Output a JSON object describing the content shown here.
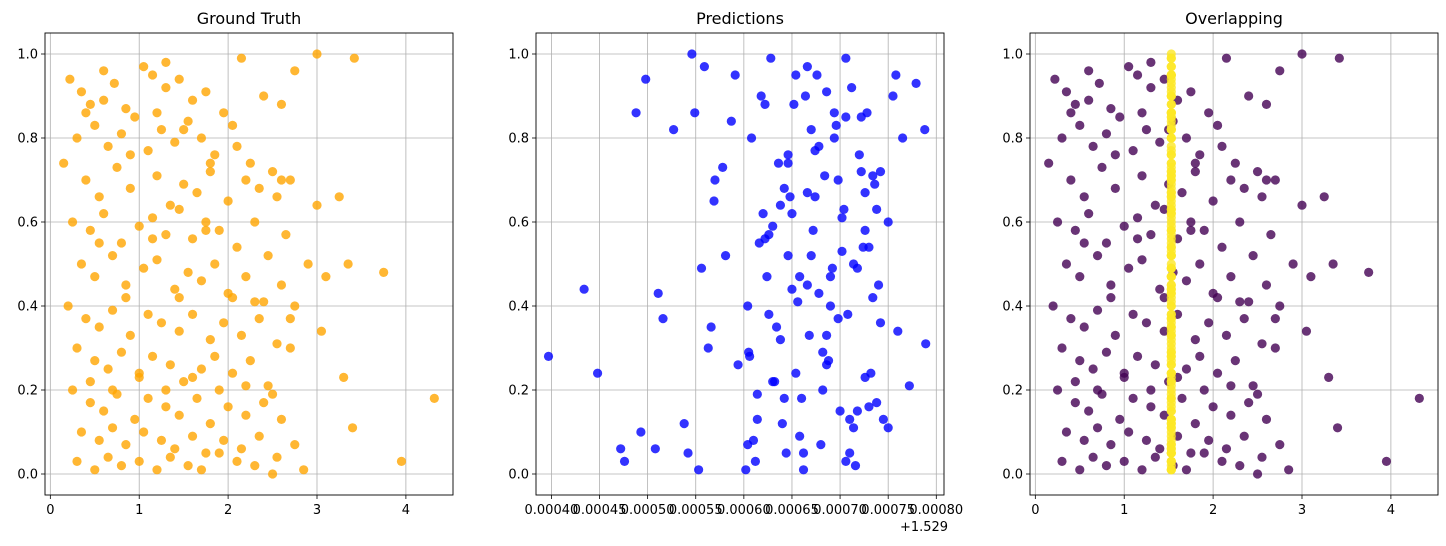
{
  "chart_data": [
    {
      "type": "scatter",
      "title": "Ground Truth",
      "xlabel": "",
      "ylabel": "",
      "xlim": [
        -0.06,
        4.53
      ],
      "ylim": [
        -0.05,
        1.05
      ],
      "xticks": [
        0,
        1,
        2,
        3,
        4
      ],
      "xtick_labels": [
        "0",
        "1",
        "2",
        "3",
        "4"
      ],
      "yticks": [
        0.0,
        0.2,
        0.4,
        0.6,
        0.8,
        1.0
      ],
      "ytick_labels": [
        "0.0",
        "0.2",
        "0.4",
        "0.6",
        "0.8",
        "1.0"
      ],
      "grid": true,
      "series": [
        {
          "color": "#FFA500",
          "alpha": 0.8,
          "x": [
            0.22,
            0.35,
            0.45,
            0.6,
            0.72,
            0.85,
            1.05,
            1.15,
            1.3,
            1.45,
            1.6,
            1.75,
            1.95,
            2.15,
            2.4,
            2.6,
            0.3,
            0.5,
            0.65,
            0.8,
            0.95,
            1.1,
            1.25,
            1.4,
            1.55,
            1.7,
            1.85,
            2.05,
            2.25,
            2.5,
            2.75,
            0.15,
            0.4,
            0.55,
            0.75,
            0.9,
            1.2,
            1.35,
            1.5,
            1.65,
            1.8,
            2.0,
            2.2,
            2.35,
            2.55,
            2.7,
            3.0,
            0.25,
            0.45,
            0.6,
            0.8,
            1.0,
            1.15,
            1.3,
            1.45,
            1.6,
            1.75,
            1.9,
            2.1,
            2.3,
            2.45,
            2.65,
            2.9,
            3.25,
            0.35,
            0.5,
            0.7,
            0.85,
            1.05,
            1.2,
            1.4,
            1.55,
            1.7,
            1.85,
            2.0,
            2.2,
            2.4,
            2.6,
            2.75,
            3.1,
            0.2,
            0.4,
            0.55,
            0.7,
            0.9,
            1.1,
            1.25,
            1.45,
            1.6,
            1.8,
            1.95,
            2.15,
            2.35,
            2.55,
            2.7,
            3.35,
            3.75,
            0.3,
            0.5,
            0.65,
            0.8,
            1.0,
            1.15,
            1.35,
            1.5,
            1.7,
            1.85,
            2.05,
            2.25,
            2.45,
            2.7,
            3.05,
            0.25,
            0.45,
            0.6,
            0.75,
            0.95,
            1.1,
            1.3,
            1.45,
            1.65,
            1.8,
            2.0,
            2.2,
            2.4,
            2.6,
            3.3,
            0.35,
            0.55,
            0.7,
            0.85,
            1.05,
            1.25,
            1.4,
            1.6,
            1.75,
            1.95,
            2.15,
            2.35,
            2.55,
            2.75,
            3.4,
            0.3,
            0.5,
            0.65,
            0.8,
            1.0,
            1.2,
            1.35,
            1.55,
            1.7,
            1.9,
            2.1,
            2.3,
            2.5,
            2.85,
            3.95,
            4.32,
            1.3,
            2.6,
            3.0,
            3.42,
            0.4,
            0.6,
            0.9,
            1.2,
            1.5,
            1.8,
            2.1,
            0.55,
            0.85,
            1.15,
            1.45,
            1.75,
            2.05,
            2.3,
            0.45,
            0.7,
            1.0,
            1.3,
            1.6,
            1.9,
            2.2,
            2.5
          ],
          "y": [
            0.94,
            0.91,
            0.88,
            0.96,
            0.93,
            0.87,
            0.97,
            0.95,
            0.92,
            0.94,
            0.89,
            0.91,
            0.86,
            0.99,
            0.9,
            0.88,
            0.8,
            0.83,
            0.78,
            0.81,
            0.85,
            0.77,
            0.82,
            0.79,
            0.84,
            0.8,
            0.76,
            0.83,
            0.74,
            0.72,
            0.96,
            0.74,
            0.7,
            0.66,
            0.73,
            0.68,
            0.71,
            0.64,
            0.69,
            0.67,
            0.72,
            0.65,
            0.7,
            0.68,
            0.66,
            0.7,
            0.64,
            0.6,
            0.58,
            0.62,
            0.55,
            0.59,
            0.61,
            0.57,
            0.63,
            0.56,
            0.6,
            0.58,
            0.54,
            0.6,
            0.52,
            0.57,
            0.5,
            0.66,
            0.5,
            0.47,
            0.52,
            0.45,
            0.49,
            0.51,
            0.44,
            0.48,
            0.46,
            0.5,
            0.43,
            0.47,
            0.41,
            0.45,
            0.4,
            0.47,
            0.4,
            0.37,
            0.35,
            0.39,
            0.33,
            0.38,
            0.36,
            0.34,
            0.38,
            0.32,
            0.36,
            0.33,
            0.37,
            0.31,
            0.37,
            0.5,
            0.48,
            0.3,
            0.27,
            0.25,
            0.29,
            0.23,
            0.28,
            0.26,
            0.22,
            0.25,
            0.28,
            0.24,
            0.27,
            0.21,
            0.3,
            0.34,
            0.2,
            0.17,
            0.15,
            0.19,
            0.13,
            0.18,
            0.16,
            0.14,
            0.18,
            0.12,
            0.16,
            0.14,
            0.17,
            0.13,
            0.23,
            0.1,
            0.08,
            0.11,
            0.07,
            0.1,
            0.08,
            0.06,
            0.09,
            0.05,
            0.08,
            0.06,
            0.09,
            0.04,
            0.07,
            0.11,
            0.03,
            0.01,
            0.04,
            0.02,
            0.03,
            0.01,
            0.04,
            0.02,
            0.01,
            0.05,
            0.03,
            0.02,
            0.0,
            0.01,
            0.03,
            0.18,
            0.98,
            0.7,
            1.0,
            0.99,
            0.86,
            0.89,
            0.76,
            0.86,
            0.82,
            0.74,
            0.78,
            0.55,
            0.42,
            0.56,
            0.42,
            0.58,
            0.42,
            0.41,
            0.22,
            0.2,
            0.24,
            0.2,
            0.23,
            0.2,
            0.21,
            0.19
          ]
        }
      ]
    },
    {
      "type": "scatter",
      "title": "Predictions",
      "xlabel": "",
      "ylabel": "",
      "offset_label": "+1.529",
      "x_offset": 1.529,
      "xlim": [
        0.000384,
        0.000808
      ],
      "ylim": [
        -0.05,
        1.05
      ],
      "xticks": [
        0.0004,
        0.00045,
        0.0005,
        0.00055,
        0.0006,
        0.00065,
        0.0007,
        0.00075,
        0.0008
      ],
      "xtick_labels": [
        "0.00040",
        "0.00045",
        "0.00050",
        "0.00055",
        "0.00060",
        "0.00065",
        "0.00070",
        "0.00075",
        "0.00080"
      ],
      "yticks": [
        0.0,
        0.2,
        0.4,
        0.6,
        0.8,
        1.0
      ],
      "ytick_labels": [
        "0.0",
        "0.2",
        "0.4",
        "0.6",
        "0.8",
        "1.0"
      ],
      "grid": true,
      "series": [
        {
          "color": "#0000FF",
          "alpha": 0.8,
          "x": [
            0.000397,
            0.000434,
            0.000448,
            0.000472,
            0.000476,
            0.000488,
            0.000493,
            0.000498,
            0.000508,
            0.000511,
            0.000516,
            0.000527,
            0.000538,
            0.000542,
            0.000546,
            0.000549,
            0.000556,
            0.000553,
            0.000559,
            0.000563,
            0.000566,
            0.000569,
            0.00057,
            0.000578,
            0.000581,
            0.000587,
            0.000591,
            0.000594,
            0.000605,
            0.000608,
            0.000612,
            0.000616,
            0.00062,
            0.000624,
            0.000628,
            0.000632,
            0.000636,
            0.00064,
            0.000644,
            0.000648,
            0.000652,
            0.000656,
            0.00066,
            0.000664,
            0.000668,
            0.000672,
            0.000676,
            0.00068,
            0.000684,
            0.000688,
            0.000692,
            0.000696,
            0.0007,
            0.000704,
            0.000708,
            0.000712,
            0.000716,
            0.00072,
            0.000724,
            0.000728,
            0.000732,
            0.000736,
            0.00074,
            0.000745,
            0.00075,
            0.000755,
            0.00076,
            0.000765,
            0.000772,
            0.000779,
            0.000788,
            0.000789,
            0.000604,
            0.000614,
            0.000626,
            0.000638,
            0.000646,
            0.000658,
            0.000666,
            0.000674,
            0.000682,
            0.000694,
            0.000702,
            0.000714,
            0.000722,
            0.000734,
            0.000602,
            0.000618,
            0.000634,
            0.00065,
            0.000662,
            0.000678,
            0.00069,
            0.000706,
            0.000718,
            0.00073,
            0.000742,
            0.00061,
            0.000622,
            0.000642,
            0.000654,
            0.00067,
            0.000686,
            0.000698,
            0.00071,
            0.000726,
            0.000738,
            0.000606,
            0.00063,
            0.000646,
            0.000662,
            0.000678,
            0.000694,
            0.00071,
            0.000726,
            0.000742,
            0.000758,
            0.000614,
            0.000638,
            0.000654,
            0.00067,
            0.000686,
            0.000702,
            0.000718,
            0.000734,
            0.00075,
            0.000622,
            0.000642,
            0.000658,
            0.000674,
            0.00069,
            0.000706,
            0.000722,
            0.000738,
            0.00063,
            0.00065,
            0.000666,
            0.000682,
            0.000698,
            0.000714,
            0.00073,
            0.000604,
            0.000626,
            0.000646,
            0.000666,
            0.000686,
            0.000706,
            0.000726
          ],
          "y": [
            0.28,
            0.44,
            0.24,
            0.06,
            0.03,
            0.86,
            0.1,
            0.94,
            0.06,
            0.43,
            0.37,
            0.82,
            0.12,
            0.05,
            1.0,
            0.86,
            0.49,
            0.01,
            0.97,
            0.3,
            0.35,
            0.65,
            0.7,
            0.73,
            0.52,
            0.84,
            0.95,
            0.26,
            0.29,
            0.8,
            0.03,
            0.55,
            0.62,
            0.47,
            0.99,
            0.22,
            0.74,
            0.12,
            0.05,
            0.66,
            0.88,
            0.41,
            0.18,
            0.9,
            0.33,
            0.58,
            0.95,
            0.07,
            0.71,
            0.27,
            0.49,
            0.83,
            0.15,
            0.63,
            0.38,
            0.92,
            0.02,
            0.76,
            0.54,
            0.86,
            0.24,
            0.69,
            0.45,
            0.13,
            0.6,
            0.9,
            0.34,
            0.8,
            0.21,
            0.93,
            0.82,
            0.31,
            0.4,
            0.13,
            0.57,
            0.32,
            0.76,
            0.09,
            0.45,
            0.66,
            0.2,
            0.86,
            0.53,
            0.11,
            0.72,
            0.42,
            0.01,
            0.9,
            0.35,
            0.62,
            0.01,
            0.78,
            0.47,
            0.99,
            0.15,
            0.54,
            0.72,
            0.08,
            0.88,
            0.68,
            0.24,
            0.52,
            0.91,
            0.37,
            0.05,
            0.58,
            0.17,
            0.28,
            0.59,
            0.74,
            0.05,
            0.43,
            0.8,
            0.13,
            0.67,
            0.36,
            0.95,
            0.19,
            0.64,
            0.95,
            0.82,
            0.26,
            0.61,
            0.49,
            0.71,
            0.11,
            0.56,
            0.18,
            0.47,
            0.77,
            0.4,
            0.03,
            0.85,
            0.63,
            0.22,
            0.44,
            0.97,
            0.29,
            0.7,
            0.5,
            0.16,
            0.07,
            0.38,
            0.52,
            0.67,
            0.33,
            0.85,
            0.23
          ],
          "x_offset_applied": false
        }
      ]
    },
    {
      "type": "scatter",
      "title": "Overlapping",
      "xlabel": "",
      "ylabel": "",
      "xlim": [
        -0.06,
        4.53
      ],
      "ylim": [
        -0.05,
        1.05
      ],
      "xticks": [
        0,
        1,
        2,
        3,
        4
      ],
      "xtick_labels": [
        "0",
        "1",
        "2",
        "3",
        "4"
      ],
      "yticks": [
        0.0,
        0.2,
        0.4,
        0.6,
        0.8,
        1.0
      ],
      "ytick_labels": [
        "0.0",
        "0.2",
        "0.4",
        "0.6",
        "0.8",
        "1.0"
      ],
      "grid": true,
      "series": [
        {
          "color": "#440154",
          "alpha": 0.8,
          "source": "ground_truth"
        },
        {
          "color": "#FDE725",
          "alpha": 0.8,
          "source": "predictions"
        }
      ]
    }
  ]
}
